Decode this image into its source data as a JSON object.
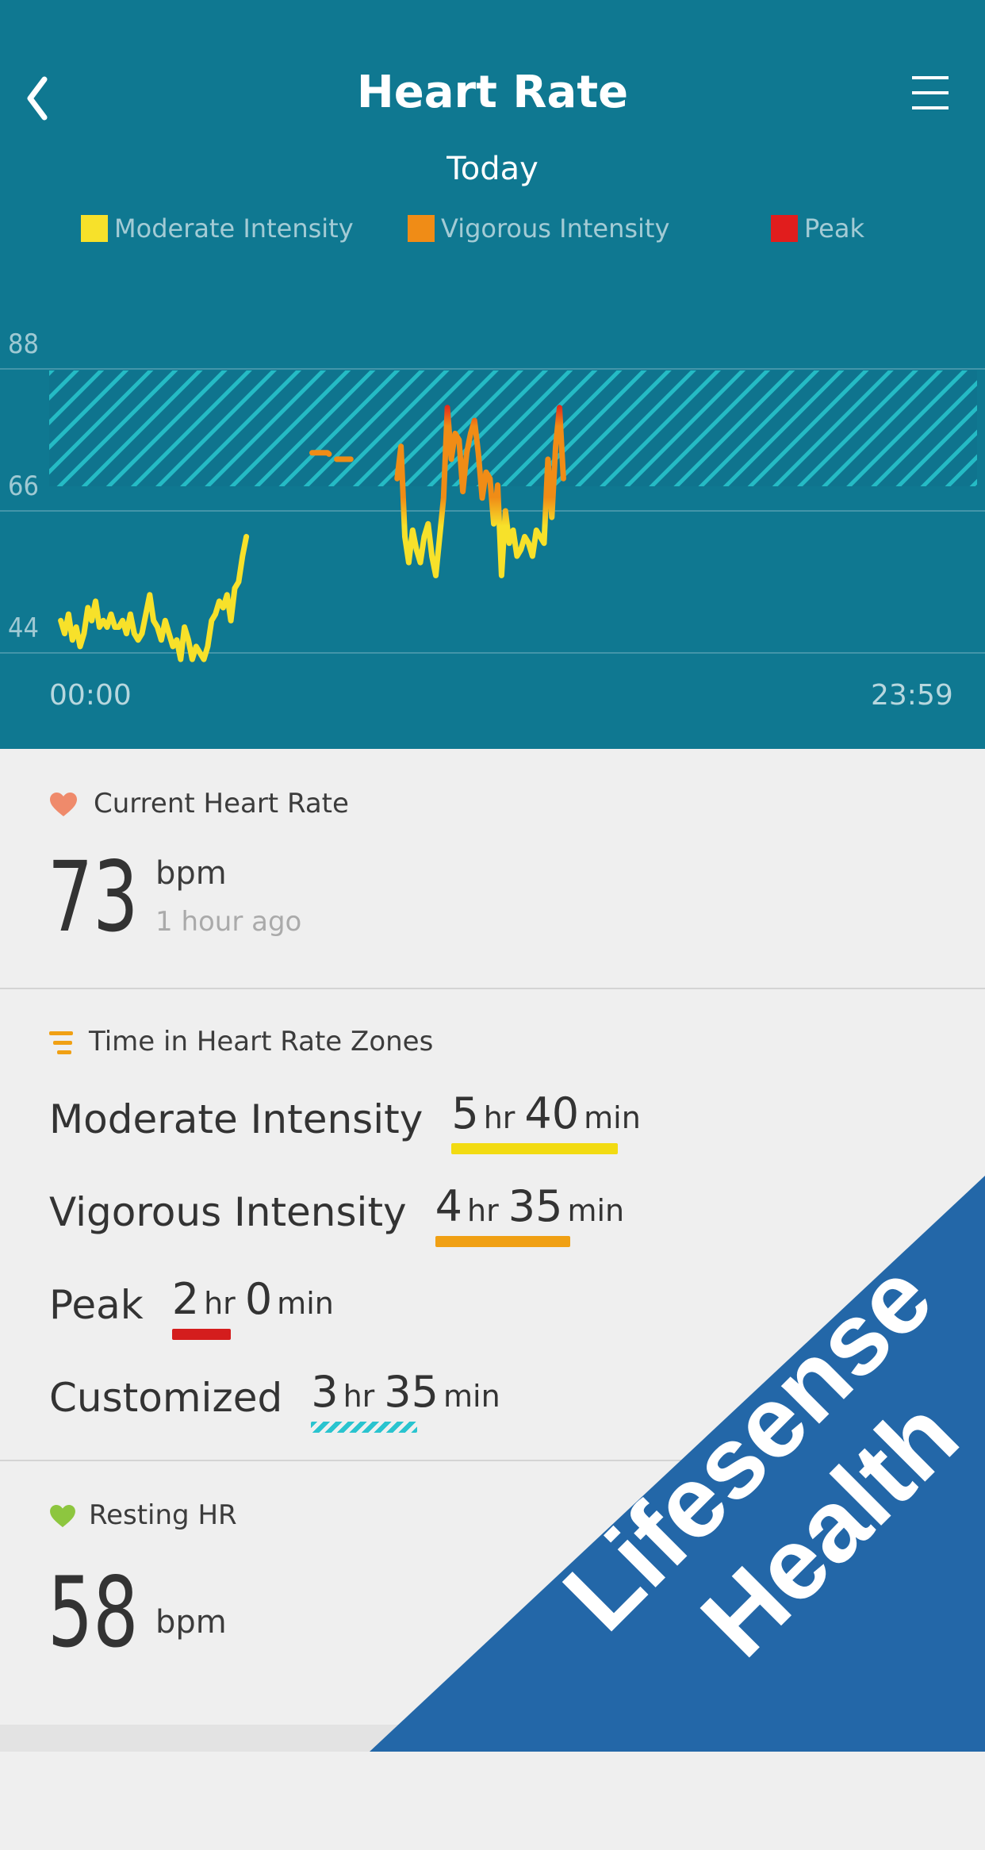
{
  "header": {
    "title": "Heart Rate",
    "period": "Today",
    "back_icon": "chevron-left-icon",
    "menu_icon": "hamburger-menu-icon",
    "background": "#0f7891"
  },
  "legend": [
    {
      "label": "Moderate Intensity",
      "color": "#f7e12a"
    },
    {
      "label": "Vigorous Intensity",
      "color": "#f08c16"
    },
    {
      "label": "Peak",
      "color": "#e11d1d"
    }
  ],
  "chart_data": {
    "type": "line",
    "y_ticks": [
      "88",
      "66",
      "44"
    ],
    "x_ticks": [
      "00:00",
      "23:59"
    ],
    "ylim": [
      44,
      88
    ],
    "grid": true,
    "custom_zone": [
      66,
      84
    ],
    "zone_colors": {
      "moderate": "#f7e12a",
      "vigorous": "#f08c16",
      "peak": "#e11d1d"
    },
    "series": [
      {
        "segment": "early",
        "x": [
          0.3,
          0.4,
          0.5,
          0.6,
          0.7,
          0.8,
          0.9,
          1.0,
          1.1,
          1.2,
          1.3,
          1.4,
          1.5,
          1.6,
          1.7,
          1.8,
          1.9,
          2.0,
          2.1,
          2.2,
          2.3,
          2.4,
          2.5,
          2.6,
          2.7,
          2.8,
          2.9,
          3.0,
          3.1,
          3.2,
          3.3,
          3.4,
          3.5,
          3.6,
          3.7,
          3.8,
          4.0,
          4.1,
          4.2,
          4.3,
          4.4,
          4.5,
          4.6,
          4.7,
          4.8,
          4.9,
          5.0,
          5.1
        ],
        "y": [
          49,
          47,
          50,
          46,
          48,
          45,
          47,
          51,
          49,
          52,
          48,
          49,
          48,
          50,
          48,
          48,
          49,
          47,
          50,
          47,
          46,
          47,
          50,
          53,
          49,
          48,
          46,
          49,
          47,
          45,
          46,
          43,
          48,
          46,
          43,
          45,
          43,
          45,
          49,
          50,
          52,
          51,
          53,
          49,
          54,
          55,
          59,
          62
        ]
      },
      {
        "segment": "midday",
        "x": [
          6.8,
          7.0,
          7.2,
          7.4,
          7.6,
          7.8
        ],
        "y": [
          75,
          75,
          75,
          74,
          74,
          74
        ]
      },
      {
        "segment": "afternoon",
        "x": [
          9.0,
          9.1,
          9.2,
          9.3,
          9.4,
          9.5,
          9.6,
          9.7,
          9.8,
          9.9,
          10.0,
          10.1,
          10.2,
          10.3,
          10.4,
          10.5,
          10.6,
          10.7,
          10.8,
          10.9,
          11.0,
          11.1,
          11.2,
          11.3,
          11.4,
          11.5,
          11.6,
          11.7,
          11.8,
          11.9,
          12.0,
          12.1,
          12.2,
          12.3,
          12.4,
          12.5,
          12.6,
          12.7,
          12.8,
          12.9,
          13.0,
          13.1,
          13.2,
          13.3
        ],
        "y": [
          71,
          76,
          62,
          58,
          63,
          60,
          58,
          62,
          64,
          59,
          56,
          62,
          68,
          82,
          74,
          78,
          77,
          69,
          75,
          78,
          80,
          75,
          68,
          72,
          71,
          64,
          70,
          56,
          66,
          61,
          63,
          59,
          60,
          62,
          61,
          59,
          63,
          62,
          61,
          74,
          65,
          76,
          82,
          71
        ]
      }
    ]
  },
  "current": {
    "label": "Current Heart Rate",
    "value": "73",
    "unit": "bpm",
    "time": "1 hour ago",
    "icon": "heart-icon",
    "icon_color": "#ef8a6b"
  },
  "zones": {
    "label": "Time in Heart Rate Zones",
    "icon": "zones-bars-icon",
    "rows": [
      {
        "name": "Moderate Intensity",
        "h": "5",
        "m": "40",
        "hr_unit": "hr",
        "min_unit": "min",
        "color": "#f2db12"
      },
      {
        "name": "Vigorous Intensity",
        "h": "4",
        "m": "35",
        "hr_unit": "hr",
        "min_unit": "min",
        "color": "#f0a014"
      },
      {
        "name": "Peak",
        "h": "2",
        "m": "0",
        "hr_unit": "hr",
        "min_unit": "min",
        "color": "#d41d1d"
      },
      {
        "name": "Customized",
        "h": "3",
        "m": "35",
        "hr_unit": "hr",
        "min_unit": "min",
        "color": "#2ac4cf"
      }
    ]
  },
  "resting": {
    "label": "Resting HR",
    "value": "58",
    "unit": "bpm",
    "icon": "green-heart-icon",
    "icon_color": "#8dc63f"
  },
  "banner": {
    "line1": "Lifesense",
    "line2": "Health",
    "color": "#2367a8"
  }
}
